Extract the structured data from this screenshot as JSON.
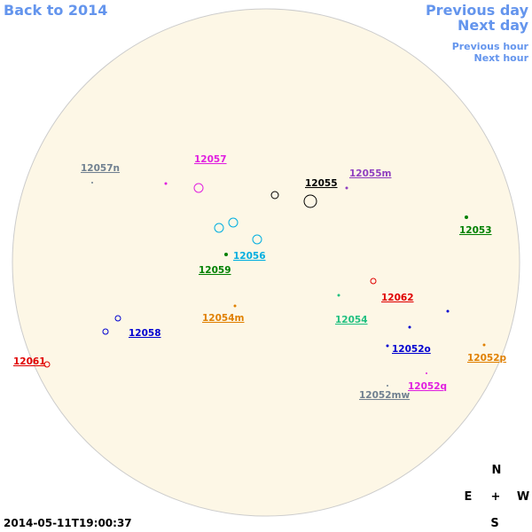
{
  "navigation": {
    "back": "Back to 2014",
    "previous_day": "Previous day",
    "next_day": "Next day",
    "previous_hour": "Previous hour",
    "next_hour": "Next hour"
  },
  "regions": [
    {
      "label": "12057n",
      "color": "#708090"
    },
    {
      "label": "12057",
      "color": "#e020e0"
    },
    {
      "label": "12055",
      "color": "#000000"
    },
    {
      "label": "12055m",
      "color": "#9040c0"
    },
    {
      "label": "12053",
      "color": "#008000"
    },
    {
      "label": "12056",
      "color": "#00aee0"
    },
    {
      "label": "12059",
      "color": "#008000"
    },
    {
      "label": "12062",
      "color": "#e00000"
    },
    {
      "label": "12054m",
      "color": "#e08000"
    },
    {
      "label": "12054",
      "color": "#20c080"
    },
    {
      "label": "12058",
      "color": "#0000d0"
    },
    {
      "label": "12061",
      "color": "#e00000"
    },
    {
      "label": "12052o",
      "color": "#0000d0"
    },
    {
      "label": "12052p",
      "color": "#e08000"
    },
    {
      "label": "12052q",
      "color": "#e020e0"
    },
    {
      "label": "12052mw",
      "color": "#708090"
    }
  ],
  "compass": {
    "north": "N",
    "east": "E",
    "center": "+",
    "west": "W",
    "south": "S"
  },
  "timestamp": "2014-05-11T19:00:37"
}
